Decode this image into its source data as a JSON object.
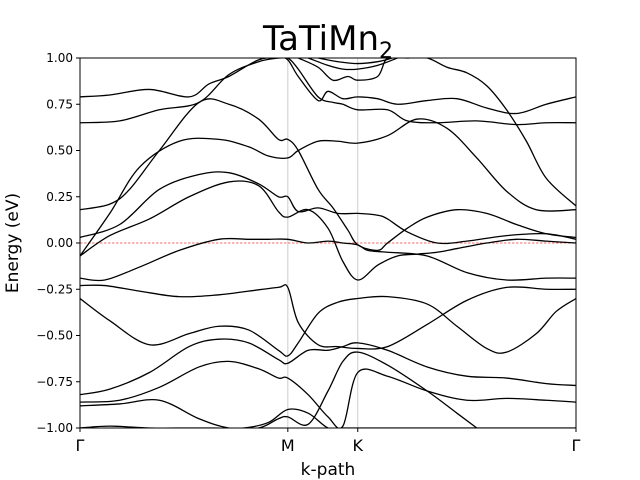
{
  "chart_data": {
    "type": "line",
    "title": "TaTiMn",
    "title_subscript": "2",
    "xlabel": "k-path",
    "ylabel": "Energy (eV)",
    "ylim": [
      -1.0,
      1.0
    ],
    "yticks": [
      -1.0,
      -0.75,
      -0.5,
      -0.25,
      0.0,
      0.25,
      0.5,
      0.75,
      1.0
    ],
    "ytick_labels": [
      "−1.00",
      "−0.75",
      "−0.50",
      "−0.25",
      "0.00",
      "0.25",
      "0.50",
      "0.75",
      "1.00"
    ],
    "xlim": [
      0,
      1
    ],
    "kpoints": [
      {
        "label": "Γ",
        "x": 0.0
      },
      {
        "label": "M",
        "x": 0.419
      },
      {
        "label": "K",
        "x": 0.56
      },
      {
        "label": "Γ",
        "x": 1.0
      }
    ],
    "fermi_level": 0.0,
    "band_color": "#000000",
    "fermi_color": "#e8403c",
    "kline_color": "#cccccc",
    "series": [
      {
        "x": [
          0.0,
          0.06,
          0.14,
          0.22,
          0.27,
          0.33,
          0.38,
          0.419,
          0.46,
          0.5,
          0.53,
          0.56,
          0.64,
          0.72,
          0.8,
          0.88,
          0.94,
          1.0
        ],
        "y": [
          -1.0,
          -0.99,
          -1.0,
          -1.0,
          -1.0,
          -1.0,
          -0.97,
          -0.9,
          -0.92,
          -1.0,
          -1.0,
          -1.0,
          -1.0,
          -1.0,
          -1.0,
          -1.0,
          -1.0,
          -1.0
        ]
      },
      {
        "x": [
          0.0,
          0.08,
          0.16,
          0.24,
          0.3,
          0.36,
          0.4,
          0.419,
          0.46,
          0.5,
          0.53,
          0.56,
          0.62,
          0.7,
          0.76,
          0.8
        ],
        "y": [
          -0.88,
          -0.87,
          -0.85,
          -0.95,
          -1.0,
          -1.0,
          -0.95,
          -0.94,
          -0.98,
          -0.8,
          -0.64,
          -0.59,
          -0.66,
          -0.8,
          -0.92,
          -1.0
        ]
      },
      {
        "x": [
          0.0,
          0.08,
          0.16,
          0.24,
          0.3,
          0.36,
          0.4,
          0.419,
          0.46,
          0.5,
          0.53,
          0.56,
          0.62,
          0.7,
          0.78,
          0.86,
          0.94,
          1.0
        ],
        "y": [
          -0.86,
          -0.85,
          -0.78,
          -0.67,
          -0.64,
          -0.68,
          -0.73,
          -0.73,
          -0.82,
          -0.94,
          -0.99,
          -0.7,
          -0.72,
          -0.8,
          -0.85,
          -0.84,
          -0.85,
          -0.86
        ]
      },
      {
        "x": [
          0.0,
          0.06,
          0.14,
          0.22,
          0.28,
          0.34,
          0.4,
          0.419,
          0.46,
          0.5,
          0.53,
          0.56,
          0.62,
          0.7,
          0.78,
          0.86,
          0.94,
          1.0
        ],
        "y": [
          -0.82,
          -0.79,
          -0.7,
          -0.56,
          -0.52,
          -0.54,
          -0.63,
          -0.65,
          -0.58,
          -0.58,
          -0.56,
          -0.54,
          -0.58,
          -0.67,
          -0.72,
          -0.73,
          -0.76,
          -0.77
        ]
      },
      {
        "x": [
          0.0,
          0.06,
          0.14,
          0.22,
          0.28,
          0.34,
          0.4,
          0.419,
          0.44,
          0.48,
          0.52,
          0.56,
          0.62,
          0.7,
          0.76,
          0.82,
          0.86,
          0.92,
          0.96,
          1.0
        ],
        "y": [
          -0.3,
          -0.42,
          -0.55,
          -0.49,
          -0.45,
          -0.47,
          -0.58,
          -0.61,
          -0.54,
          -0.38,
          -0.32,
          -0.3,
          -0.29,
          -0.33,
          -0.45,
          -0.57,
          -0.59,
          -0.49,
          -0.37,
          -0.3
        ]
      },
      {
        "x": [
          0.0,
          0.05,
          0.12,
          0.2,
          0.28,
          0.34,
          0.4,
          0.419,
          0.44,
          0.48,
          0.52,
          0.56,
          0.62,
          0.7,
          0.78,
          0.86,
          0.94,
          1.0
        ],
        "y": [
          -0.23,
          -0.23,
          -0.26,
          -0.29,
          -0.28,
          -0.26,
          -0.24,
          -0.24,
          -0.43,
          -0.55,
          -0.56,
          -0.57,
          -0.56,
          -0.44,
          -0.31,
          -0.24,
          -0.25,
          -0.25
        ]
      },
      {
        "x": [
          0.0,
          0.05,
          0.12,
          0.2,
          0.28,
          0.34,
          0.38,
          0.419,
          0.46,
          0.5,
          0.53,
          0.56,
          0.58,
          0.62,
          0.7,
          0.78,
          0.86,
          0.94,
          1.0
        ],
        "y": [
          -0.19,
          -0.2,
          -0.13,
          -0.04,
          0.02,
          0.02,
          0.02,
          0.02,
          0.0,
          0.01,
          0.0,
          -0.01,
          -0.04,
          -0.05,
          -0.07,
          -0.16,
          -0.2,
          -0.19,
          -0.19
        ]
      },
      {
        "x": [
          0.0,
          0.06,
          0.14,
          0.22,
          0.3,
          0.36,
          0.4,
          0.419,
          0.46,
          0.5,
          0.53,
          0.56,
          0.6,
          0.64,
          0.68,
          0.72,
          0.76,
          0.82,
          0.88,
          0.94,
          1.0
        ],
        "y": [
          -0.07,
          0.04,
          0.13,
          0.25,
          0.33,
          0.31,
          0.17,
          0.14,
          0.18,
          0.08,
          -0.1,
          -0.2,
          -0.12,
          -0.07,
          -0.06,
          -0.05,
          -0.03,
          -0.0,
          0.02,
          0.01,
          -0.0
        ]
      },
      {
        "x": [
          0.0,
          0.08,
          0.16,
          0.24,
          0.3,
          0.36,
          0.4,
          0.419,
          0.44,
          0.48,
          0.52,
          0.56,
          0.6,
          0.62,
          0.66,
          0.72,
          0.78,
          0.86,
          0.94,
          1.0
        ],
        "y": [
          0.03,
          0.1,
          0.29,
          0.37,
          0.38,
          0.32,
          0.25,
          0.25,
          0.17,
          0.19,
          0.16,
          0.16,
          0.15,
          0.13,
          0.06,
          -0.0,
          0.01,
          0.04,
          0.05,
          0.02
        ]
      },
      {
        "x": [
          0.0,
          0.06,
          0.1,
          0.16,
          0.24,
          0.3,
          0.36,
          0.4,
          0.419,
          0.44,
          0.48,
          0.51,
          0.54,
          0.56,
          0.6,
          0.62,
          0.66,
          0.7,
          0.76,
          0.82,
          0.88,
          0.94,
          1.0
        ],
        "y": [
          0.18,
          0.21,
          0.29,
          0.5,
          0.76,
          0.75,
          0.67,
          0.56,
          0.56,
          0.5,
          0.29,
          0.19,
          0.07,
          -0.01,
          -0.04,
          -0.0,
          0.08,
          0.14,
          0.18,
          0.16,
          0.1,
          0.05,
          0.03
        ]
      },
      {
        "x": [
          0.0,
          0.06,
          0.12,
          0.2,
          0.28,
          0.34,
          0.38,
          0.419,
          0.44,
          0.48,
          0.52,
          0.56,
          0.62,
          0.68,
          0.74,
          0.8,
          0.86,
          0.92,
          1.0
        ],
        "y": [
          -0.07,
          0.16,
          0.41,
          0.55,
          0.56,
          0.52,
          0.47,
          0.46,
          0.5,
          0.55,
          0.55,
          0.54,
          0.58,
          0.67,
          0.62,
          0.46,
          0.28,
          0.18,
          0.18
        ]
      },
      {
        "x": [
          0.0,
          0.08,
          0.16,
          0.24,
          0.3,
          0.36,
          0.4,
          0.419,
          0.44,
          0.48,
          0.51,
          0.53,
          0.56,
          0.62,
          0.66,
          0.72,
          0.8,
          0.88,
          0.94,
          1.0
        ],
        "y": [
          0.65,
          0.66,
          0.72,
          0.76,
          0.91,
          0.98,
          1.0,
          1.0,
          0.94,
          0.79,
          0.76,
          0.75,
          0.72,
          0.72,
          0.66,
          0.65,
          0.66,
          0.64,
          0.65,
          0.65
        ]
      },
      {
        "x": [
          0.0,
          0.06,
          0.14,
          0.22,
          0.26,
          0.3,
          0.36,
          0.4,
          0.419,
          0.44,
          0.48,
          0.5,
          0.53,
          0.56,
          0.6,
          0.64,
          0.7,
          0.76,
          0.82,
          0.88,
          0.94,
          1.0
        ],
        "y": [
          0.79,
          0.8,
          0.83,
          0.79,
          0.86,
          0.9,
          0.99,
          1.0,
          0.99,
          0.9,
          0.77,
          0.82,
          0.78,
          0.79,
          0.78,
          0.75,
          0.77,
          0.78,
          0.73,
          0.7,
          0.75,
          0.79
        ]
      },
      {
        "x": [
          0.44,
          0.48,
          0.51,
          0.54,
          0.56,
          0.6,
          0.62,
          0.66,
          0.7,
          0.74,
          0.78,
          0.82,
          0.86,
          0.9,
          0.94,
          1.0
        ],
        "y": [
          1.0,
          0.95,
          0.88,
          0.9,
          0.88,
          0.9,
          1.0,
          1.0,
          1.0,
          0.95,
          0.92,
          0.85,
          0.72,
          0.55,
          0.35,
          0.2
        ]
      },
      {
        "x": [
          0.46,
          0.5,
          0.53,
          0.56,
          0.6,
          0.64
        ],
        "y": [
          1.0,
          0.96,
          0.94,
          0.94,
          0.96,
          1.0
        ]
      },
      {
        "x": [
          0.48,
          0.52,
          0.56,
          0.6,
          0.63
        ],
        "y": [
          1.0,
          0.98,
          0.97,
          0.98,
          1.0
        ]
      }
    ]
  }
}
